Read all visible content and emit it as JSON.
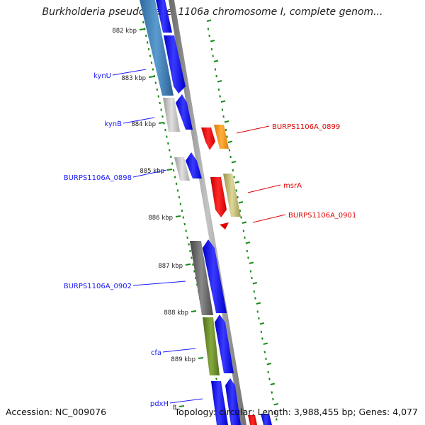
{
  "header": {
    "title": "Burkholderia pseudomallei 1106a chromosome I, complete genom..."
  },
  "ticks": [
    {
      "label": "882 kbp"
    },
    {
      "label": "883 kbp"
    },
    {
      "label": "884 kbp"
    },
    {
      "label": "885 kbp"
    },
    {
      "label": "886 kbp"
    },
    {
      "label": "887 kbp"
    },
    {
      "label": "888 kbp"
    },
    {
      "label": "889 kbp"
    },
    {
      "label": "8"
    }
  ],
  "genes_left": [
    {
      "name": "kynU"
    },
    {
      "name": "kynB"
    },
    {
      "name": "BURPS1106A_0898"
    },
    {
      "name": "BURPS1106A_0902"
    },
    {
      "name": "cfa"
    },
    {
      "name": "pdxH"
    }
  ],
  "genes_right": [
    {
      "name": "BURPS1106A_0899"
    },
    {
      "name": "msrA"
    },
    {
      "name": "BURPS1106A_0901"
    }
  ],
  "colors": {
    "forward_label": "#1a1aff",
    "reverse_label": "#e00000",
    "strand": "#1010ee",
    "backbone": "#888888",
    "dots": "#1a8a1a"
  },
  "footer": {
    "accession": "Accession: NC_009076",
    "stats": "Topology: circular; Length: 3,988,455 bp; Genes: 4,077"
  }
}
